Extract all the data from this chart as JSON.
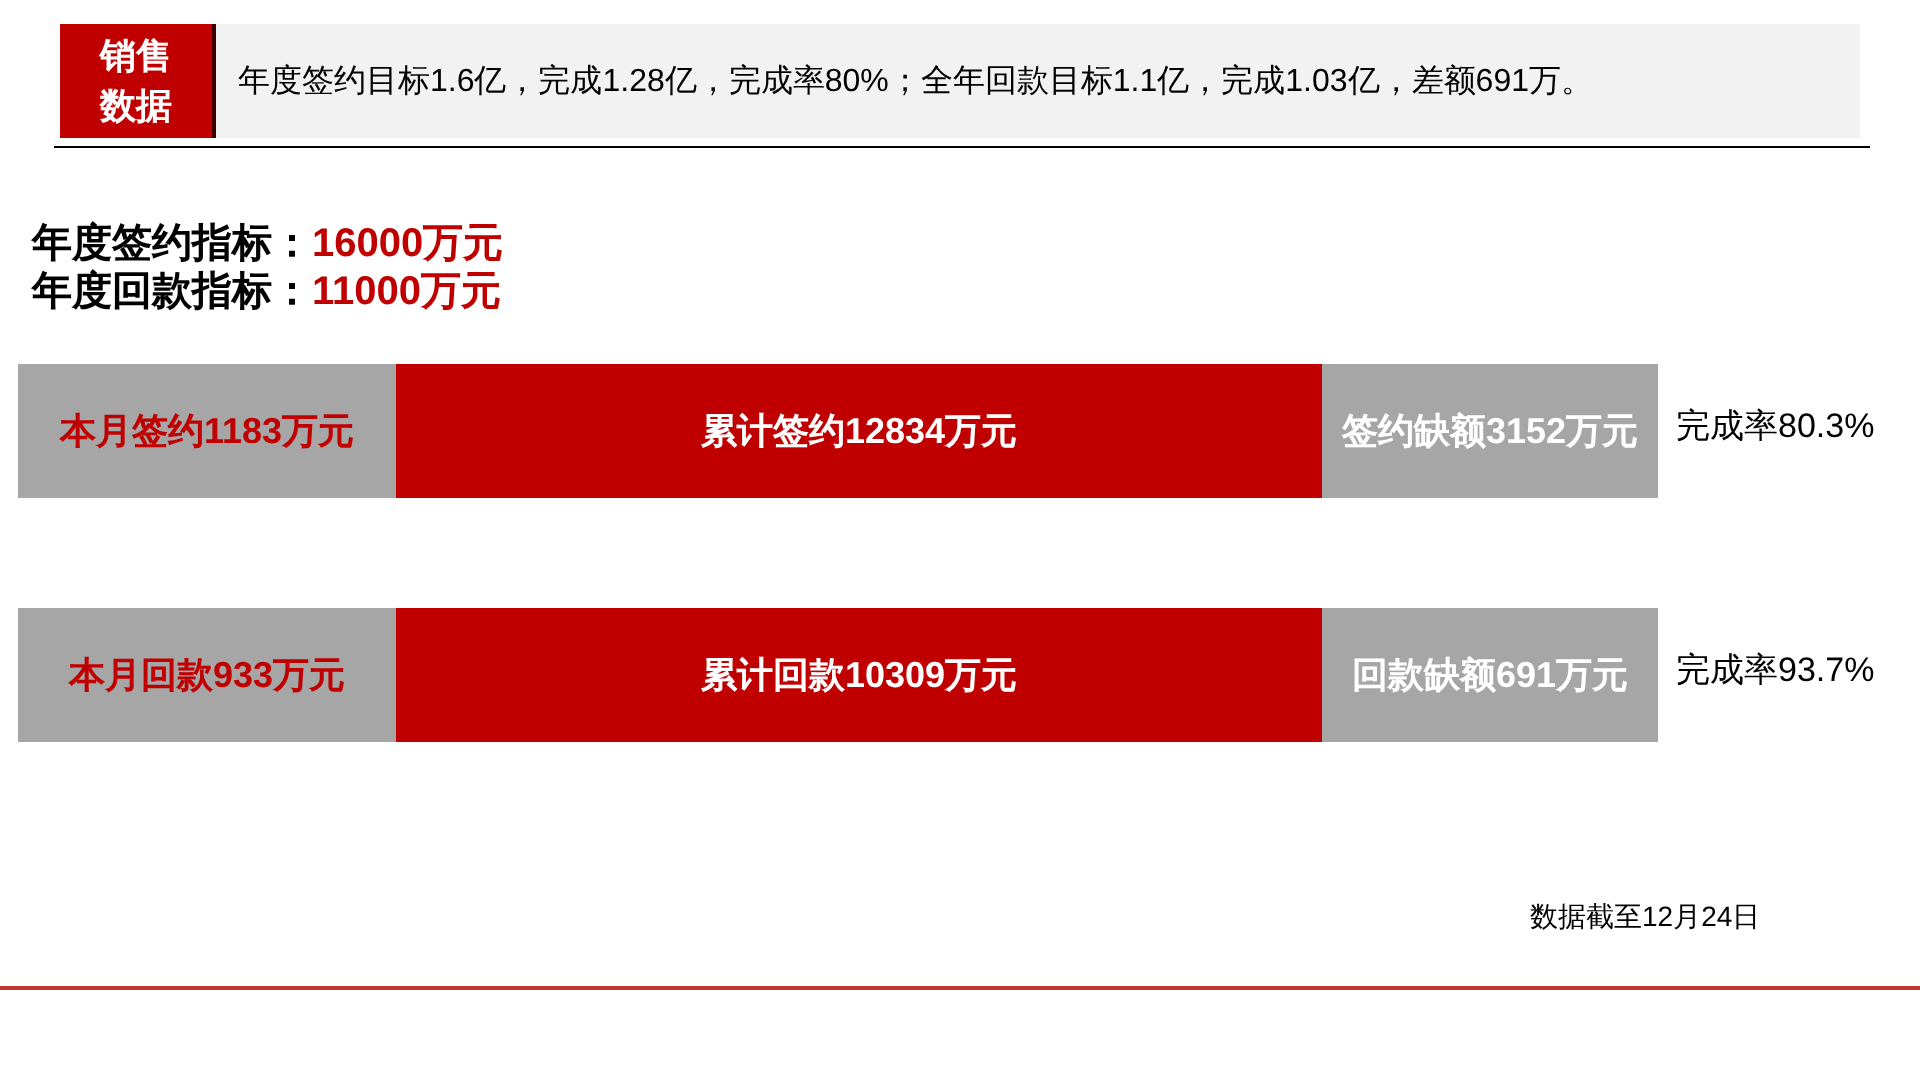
{
  "chart_data": [
    {
      "type": "other",
      "title": "销售数据",
      "subtitle": "年度签约目标1.6亿，完成1.28亿，完成率80%；全年回款目标1.1亿，完成1.03亿，差额691万。",
      "annotations": [
        "年度签约指标：16000万元",
        "年度回款指标：11000万元"
      ],
      "categories": [
        "本月签约",
        "累计签约",
        "签约缺额",
        "完成率"
      ],
      "values": [
        1183,
        12834,
        3152,
        80.3
      ],
      "value_labels": [
        "1183万元",
        "12834万元",
        "3152万元",
        "80.3%"
      ],
      "colors": [
        "#a6a6a6",
        "#c00000",
        "#a6a6a6",
        null
      ]
    },
    {
      "type": "other",
      "annotations": [
        "数据截至12月24日"
      ],
      "categories": [
        "本月回款",
        "累计回款",
        "回款缺额",
        "完成率"
      ],
      "values": [
        933,
        10309,
        691,
        93.7
      ],
      "value_labels": [
        "933万元",
        "10309万元",
        "691万元",
        "93.7%"
      ],
      "colors": [
        "#a6a6a6",
        "#c00000",
        "#a6a6a6",
        null
      ]
    }
  ]
}
